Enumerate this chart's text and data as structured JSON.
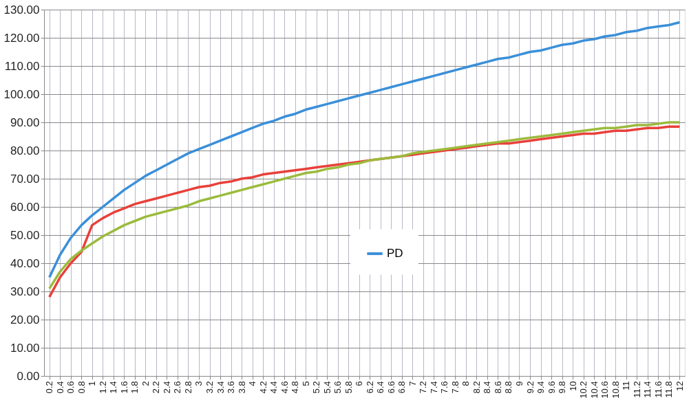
{
  "chart_data": {
    "type": "line",
    "categories": [
      "0.2",
      "0.4",
      "0.6",
      "0.8",
      "1",
      "1.2",
      "1.4",
      "1.6",
      "1.8",
      "2",
      "2.2",
      "2.4",
      "2.6",
      "2.8",
      "3",
      "3.2",
      "3.4",
      "3.6",
      "3.8",
      "4",
      "4.2",
      "4.4",
      "4.6",
      "4.8",
      "5",
      "5.2",
      "5.4",
      "5.6",
      "5.8",
      "6",
      "6.2",
      "6.4",
      "6.6",
      "6.8",
      "7",
      "7.2",
      "7.4",
      "7.6",
      "7.8",
      "8",
      "8.2",
      "8.4",
      "8.6",
      "8.8",
      "9",
      "9.2",
      "9.4",
      "9.6",
      "9.8",
      "10",
      "10.2",
      "10.4",
      "10.6",
      "10.8",
      "11",
      "11.2",
      "11.4",
      "11.6",
      "11.8",
      "12"
    ],
    "series": [
      {
        "name": "PD",
        "color": "#3a8fd9",
        "values": [
          35,
          43,
          49,
          53.5,
          57,
          60,
          63,
          66,
          68.5,
          71,
          73,
          75,
          77,
          79,
          80.5,
          82,
          83.5,
          85,
          86.5,
          88,
          89.5,
          90.5,
          92,
          93,
          94.5,
          95.5,
          96.5,
          97.5,
          98.5,
          99.5,
          100.5,
          101.5,
          102.5,
          103.5,
          104.5,
          105.5,
          106.5,
          107.5,
          108.5,
          109.5,
          110.5,
          111.5,
          112.5,
          113,
          114,
          115,
          115.5,
          116.5,
          117.5,
          118,
          119,
          119.5,
          120.5,
          121,
          122,
          122.5,
          123.5,
          124,
          124.5,
          125.5
        ]
      },
      {
        "color": "#e8403a",
        "values": [
          28,
          35,
          40,
          44,
          53.5,
          56,
          58,
          59.5,
          61,
          62,
          63,
          64,
          65,
          66,
          67,
          67.5,
          68.5,
          69,
          70,
          70.5,
          71.5,
          72,
          72.5,
          73,
          73.5,
          74,
          74.5,
          75,
          75.5,
          76,
          76.5,
          77,
          77.5,
          78,
          78.5,
          79,
          79.5,
          80,
          80.5,
          81,
          81.5,
          82,
          82.5,
          82.5,
          83,
          83.5,
          84,
          84.5,
          85,
          85.5,
          86,
          86,
          86.5,
          87,
          87,
          87.5,
          88,
          88,
          88.5,
          88.5
        ]
      },
      {
        "color": "#9bbb3c",
        "values": [
          31,
          37,
          41.5,
          44.5,
          47,
          49.5,
          51.5,
          53.5,
          55,
          56.5,
          57.5,
          58.5,
          59.5,
          60.5,
          62,
          63,
          64,
          65,
          66,
          67,
          68,
          69,
          70,
          71,
          72,
          72.5,
          73.5,
          74,
          75,
          75.5,
          76.5,
          77,
          77.5,
          78,
          79,
          79.5,
          80,
          80.5,
          81,
          81.5,
          82,
          82.5,
          83,
          83.5,
          84,
          84.5,
          85,
          85.5,
          86,
          86.5,
          87,
          87.5,
          88,
          88,
          88.5,
          89,
          89,
          89.5,
          90,
          90
        ]
      }
    ],
    "ylim": [
      0,
      130
    ],
    "yticks": [
      {
        "value": 0,
        "label": "0.00"
      },
      {
        "value": 10,
        "label": "10.00"
      },
      {
        "value": 20,
        "label": "20.00"
      },
      {
        "value": 30,
        "label": "30.00"
      },
      {
        "value": 40,
        "label": "40.00"
      },
      {
        "value": 50,
        "label": "50.00"
      },
      {
        "value": 60,
        "label": "60.00"
      },
      {
        "value": 70,
        "label": "70.00"
      },
      {
        "value": 80,
        "label": "80.00"
      },
      {
        "value": 90,
        "label": "90.00"
      },
      {
        "value": 100,
        "label": "100.00"
      },
      {
        "value": 110,
        "label": "110.00"
      },
      {
        "value": 120,
        "label": "120.00"
      },
      {
        "value": 130,
        "label": "130.00"
      }
    ],
    "grid": true,
    "legend": "bottom",
    "marker": "none",
    "line_style": "solid"
  }
}
